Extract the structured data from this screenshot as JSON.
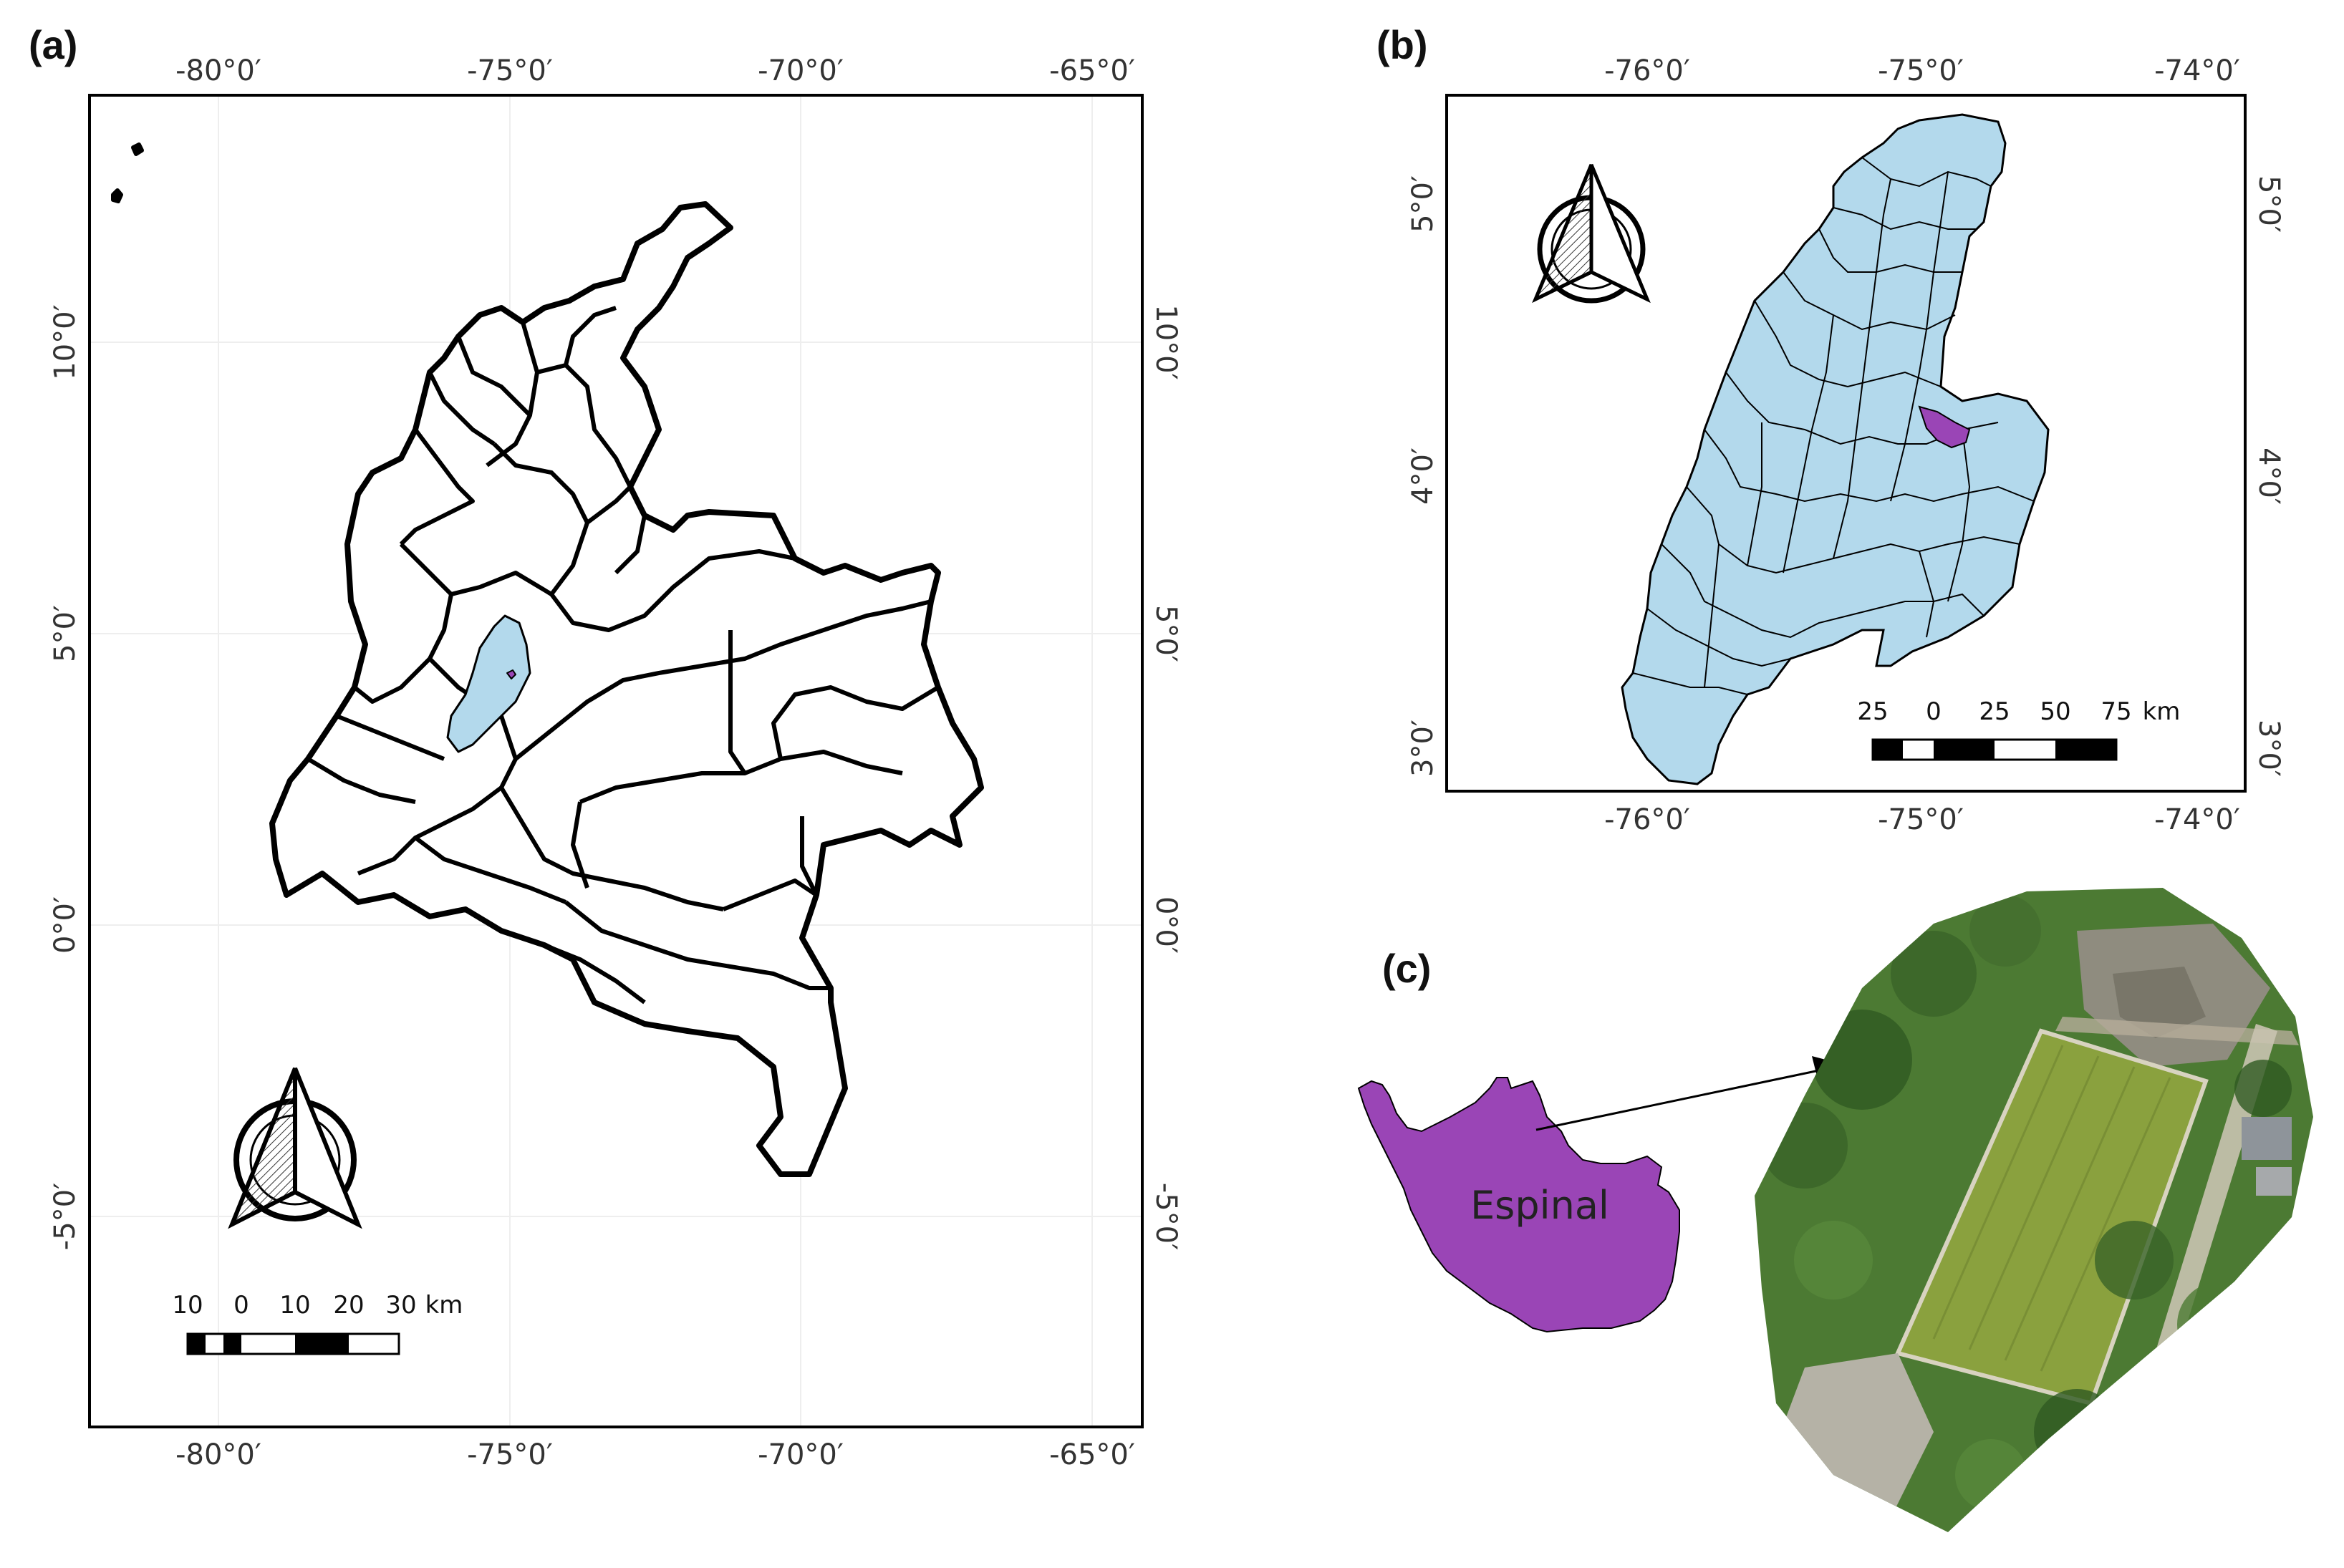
{
  "panels": {
    "a": {
      "label": "(a)",
      "top_ticks": [
        "-80°0′",
        "-75°0′",
        "-70°0′",
        "-65°0′"
      ],
      "bottom_ticks": [
        "-80°0′",
        "-75°0′",
        "-70°0′",
        "-65°0′"
      ],
      "left_ticks": [
        "10°0′",
        "5°0′",
        "0°0′",
        "-5°0′"
      ],
      "right_ticks": [
        "10°0′",
        "5°0′",
        "0°0′",
        "-5°0′"
      ],
      "scale_labels": [
        "10",
        "0",
        "10",
        "20",
        "30",
        "km"
      ],
      "north_arrow": "north-arrow-icon"
    },
    "b": {
      "label": "(b)",
      "top_ticks": [
        "-76°0′",
        "-75°0′",
        "-74°0′"
      ],
      "bottom_ticks": [
        "-76°0′",
        "-75°0′",
        "-74°0′"
      ],
      "left_ticks": [
        "5°0′",
        "4°0′",
        "3°0′"
      ],
      "right_ticks": [
        "5°0′",
        "4°0′",
        "3°0′"
      ],
      "scale_labels": [
        "25",
        "0",
        "25",
        "50",
        "75",
        "km"
      ],
      "north_arrow": "north-arrow-icon"
    },
    "c": {
      "label": "(c)",
      "place_name": "Espinal",
      "imagery": "aerial-orthophoto"
    }
  },
  "colors": {
    "frame": "#000000",
    "region_fill": "#b3d9ec",
    "highlight_fill": "#9a45b6",
    "country_fill": "#ffffff",
    "grid": "#eeeeee",
    "vegetation": "#4c7a33",
    "crop_field": "#8aa13e",
    "bare_ground": "#a9a59b"
  }
}
